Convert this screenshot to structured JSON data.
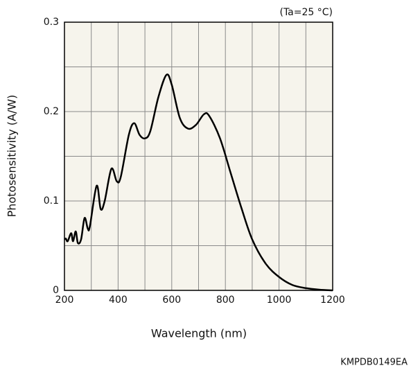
{
  "chart_data": {
    "type": "line",
    "annotation": "(Ta=25 °C)",
    "ylabel": "Photosensitivity (A/W)",
    "xlabel": "Wavelength (nm)",
    "code": "KMPDB0149EA",
    "xlim": [
      200,
      1200
    ],
    "ylim": [
      0,
      0.3
    ],
    "xticks": [
      200,
      400,
      600,
      800,
      1000,
      1200
    ],
    "yticks": [
      0,
      0.1,
      0.2,
      0.3
    ],
    "minor_xticks": [
      300,
      500,
      700,
      900,
      1100
    ],
    "minor_yticks": [
      0.05,
      0.15,
      0.25
    ],
    "grid": true,
    "series": [
      {
        "color": "#000000",
        "x": [
          200,
          205,
          212,
          225,
          232,
          242,
          250,
          262,
          275,
          287,
          295,
          320,
          335,
          350,
          375,
          395,
          410,
          440,
          460,
          480,
          500,
          520,
          550,
          580,
          600,
          630,
          660,
          690,
          720,
          740,
          780,
          820,
          860,
          900,
          950,
          1000,
          1050,
          1100,
          1150,
          1200
        ],
        "values": [
          0.057,
          0.058,
          0.055,
          0.064,
          0.055,
          0.066,
          0.053,
          0.057,
          0.081,
          0.069,
          0.072,
          0.117,
          0.091,
          0.1,
          0.136,
          0.122,
          0.127,
          0.174,
          0.187,
          0.174,
          0.17,
          0.178,
          0.216,
          0.241,
          0.23,
          0.193,
          0.181,
          0.185,
          0.197,
          0.195,
          0.17,
          0.131,
          0.092,
          0.057,
          0.03,
          0.015,
          0.006,
          0.0025,
          0.0008,
          0
        ]
      }
    ]
  }
}
